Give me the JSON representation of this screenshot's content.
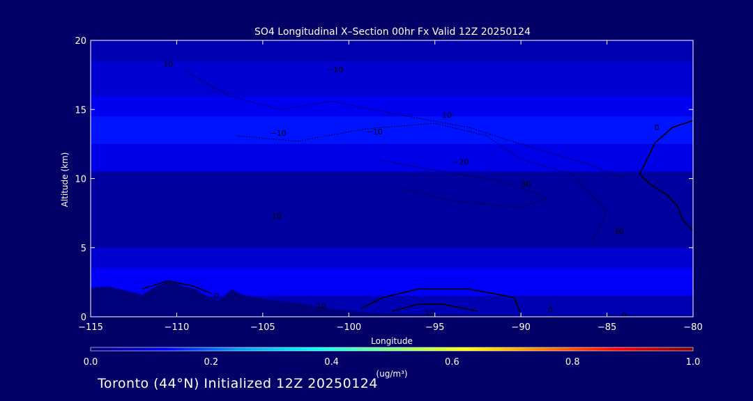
{
  "chart_data": {
    "type": "heatmap",
    "title": "SO4 Longitudinal X–Section 00hr  Fx Valid 12Z 20250124",
    "xlabel": "Longitude",
    "ylabel": "Altitude (km)",
    "xlim": [
      -115,
      -80
    ],
    "ylim": [
      0,
      20
    ],
    "x_ticks": [
      -115,
      -110,
      -105,
      -100,
      -95,
      -90,
      -85,
      -80
    ],
    "x_tick_labels": [
      "−115",
      "−110",
      "−105",
      "−100",
      "−95",
      "−90",
      "−85",
      "−80"
    ],
    "y_ticks": [
      0,
      5,
      10,
      15,
      20
    ],
    "y_tick_labels": [
      "0",
      "5",
      "10",
      "15",
      "20"
    ],
    "colorbar": {
      "label": "(ug/m³)",
      "min": 0.0,
      "max": 1.0,
      "ticks": [
        0.0,
        0.2,
        0.4,
        0.6,
        0.8,
        1.0
      ],
      "tick_labels": [
        "0.0",
        "0.2",
        "0.4",
        "0.6",
        "0.8",
        "1.0"
      ],
      "colors": [
        "#000080",
        "#0000ff",
        "#00a0ff",
        "#00ffff",
        "#80ff80",
        "#ffff00",
        "#ff8000",
        "#ff0000",
        "#800000"
      ]
    },
    "field_bands": [
      {
        "z_bottom": 18.5,
        "z_top": 20,
        "value": 0.05
      },
      {
        "z_bottom": 16.0,
        "z_top": 18.5,
        "value": 0.08
      },
      {
        "z_bottom": 14.5,
        "z_top": 16.0,
        "value": 0.11
      },
      {
        "z_bottom": 12.5,
        "z_top": 14.5,
        "value": 0.14
      },
      {
        "z_bottom": 10.5,
        "z_top": 12.5,
        "value": 0.1
      },
      {
        "z_bottom": 5.0,
        "z_top": 10.5,
        "value": 0.03
      },
      {
        "z_bottom": 3.5,
        "z_top": 5.0,
        "value": 0.08
      },
      {
        "z_bottom": 1.5,
        "z_top": 3.5,
        "value": 0.12
      },
      {
        "z_bottom": 0,
        "z_top": 1.5,
        "value": 0.05
      }
    ],
    "contour_labels": [
      {
        "text": "10",
        "x": -110.5,
        "y": 18.3
      },
      {
        "text": "−10",
        "x": -100.8,
        "y": 17.9
      },
      {
        "text": "10",
        "x": -94.3,
        "y": 14.6
      },
      {
        "text": "−10",
        "x": -104.1,
        "y": 13.3
      },
      {
        "text": "−10",
        "x": -98.5,
        "y": 13.4
      },
      {
        "text": "−20",
        "x": -93.5,
        "y": 11.2
      },
      {
        "text": "30",
        "x": -89.7,
        "y": 9.6
      },
      {
        "text": "10",
        "x": -84.3,
        "y": 6.2
      },
      {
        "text": "10",
        "x": -104.2,
        "y": 7.3
      },
      {
        "text": "0",
        "x": -82.1,
        "y": 13.7
      },
      {
        "text": "0",
        "x": -107.7,
        "y": 1.5
      },
      {
        "text": "10",
        "x": -101.6,
        "y": 0.8
      },
      {
        "text": "10",
        "x": -95.3,
        "y": 0.3
      },
      {
        "text": "0",
        "x": -88.3,
        "y": 0.5
      },
      {
        "text": "0",
        "x": -84.0,
        "y": 0.1
      }
    ],
    "terrain_km": [
      [
        -115,
        2.1
      ],
      [
        -114,
        2.2
      ],
      [
        -113,
        1.9
      ],
      [
        -112,
        1.6
      ],
      [
        -111.2,
        2.2
      ],
      [
        -110.4,
        2.6
      ],
      [
        -109.6,
        2.2
      ],
      [
        -108.9,
        2.0
      ],
      [
        -108.4,
        1.6
      ],
      [
        -107.6,
        1.1
      ],
      [
        -106.8,
        2.0
      ],
      [
        -106.2,
        1.6
      ],
      [
        -105.5,
        1.4
      ],
      [
        -104.5,
        1.2
      ],
      [
        -103,
        1.0
      ],
      [
        -101,
        0.6
      ],
      [
        -99,
        0.3
      ],
      [
        -96,
        0.2
      ],
      [
        -90,
        0.1
      ],
      [
        -85,
        0.1
      ],
      [
        -80,
        0.1
      ]
    ],
    "grid": false,
    "legend": "colorbar-bottom"
  },
  "footer": {
    "text": "Toronto (44°N) Initialized 12Z 20250124"
  }
}
